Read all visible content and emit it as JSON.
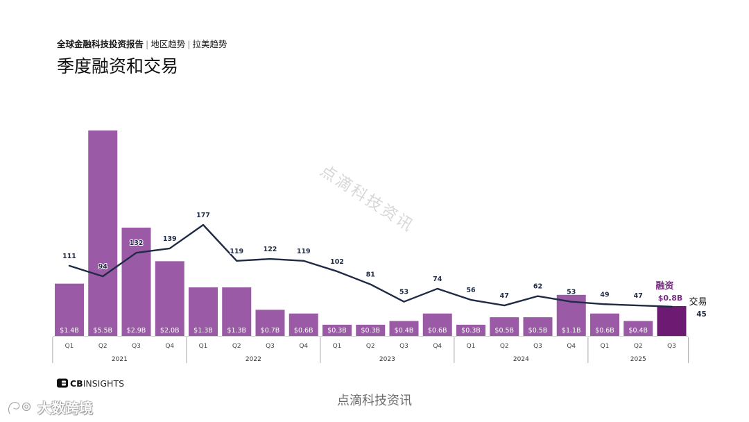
{
  "header": {
    "parts": [
      "全球金融科技投资报告",
      "地区趋势",
      "拉美趋势"
    ],
    "separator": "|"
  },
  "title": "季度融资和交易",
  "chart_data": {
    "type": "bar",
    "categories": [
      {
        "year": "2021",
        "quarter": "Q1"
      },
      {
        "year": "2021",
        "quarter": "Q2"
      },
      {
        "year": "2021",
        "quarter": "Q3"
      },
      {
        "year": "2021",
        "quarter": "Q4"
      },
      {
        "year": "2022",
        "quarter": "Q1"
      },
      {
        "year": "2022",
        "quarter": "Q2"
      },
      {
        "year": "2022",
        "quarter": "Q3"
      },
      {
        "year": "2022",
        "quarter": "Q4"
      },
      {
        "year": "2023",
        "quarter": "Q1"
      },
      {
        "year": "2023",
        "quarter": "Q2"
      },
      {
        "year": "2023",
        "quarter": "Q3"
      },
      {
        "year": "2023",
        "quarter": "Q4"
      },
      {
        "year": "2024",
        "quarter": "Q1"
      },
      {
        "year": "2024",
        "quarter": "Q2"
      },
      {
        "year": "2024",
        "quarter": "Q3"
      },
      {
        "year": "2024",
        "quarter": "Q4"
      },
      {
        "year": "2025",
        "quarter": "Q1"
      },
      {
        "year": "2025",
        "quarter": "Q2"
      },
      {
        "year": "2025",
        "quarter": "Q3"
      }
    ],
    "series": [
      {
        "name": "融资",
        "type": "bar",
        "values": [
          1.4,
          5.5,
          2.9,
          2.0,
          1.3,
          1.3,
          0.7,
          0.6,
          0.3,
          0.3,
          0.4,
          0.6,
          0.3,
          0.5,
          0.5,
          1.1,
          0.6,
          0.4,
          0.8
        ],
        "labels": [
          "$1.4B",
          "$5.5B",
          "$2.9B",
          "$2.0B",
          "$1.3B",
          "$1.3B",
          "$0.7B",
          "$0.6B",
          "$0.3B",
          "$0.3B",
          "$0.4B",
          "$0.6B",
          "$0.3B",
          "$0.5B",
          "$0.5B",
          "$1.1B",
          "$0.6B",
          "$0.4B",
          "$0.8B"
        ]
      },
      {
        "name": "交易",
        "type": "line",
        "values": [
          111,
          94,
          132,
          139,
          177,
          119,
          122,
          119,
          102,
          81,
          53,
          74,
          56,
          47,
          62,
          53,
          49,
          47,
          45
        ]
      }
    ],
    "grid": false,
    "legend": "right"
  },
  "colors": {
    "bar": "#9b5aa6",
    "bar_highlight": "#6d1a73",
    "line": "#1f2a44",
    "callout": "#7a2d85"
  },
  "watermarks": {
    "diagonal": "点滴科技资讯",
    "footer": "点滴科技资讯"
  },
  "logos": {
    "cbinsights": {
      "bold": "CB",
      "light": "INSIGHTS"
    },
    "corner": "大数跨境"
  }
}
